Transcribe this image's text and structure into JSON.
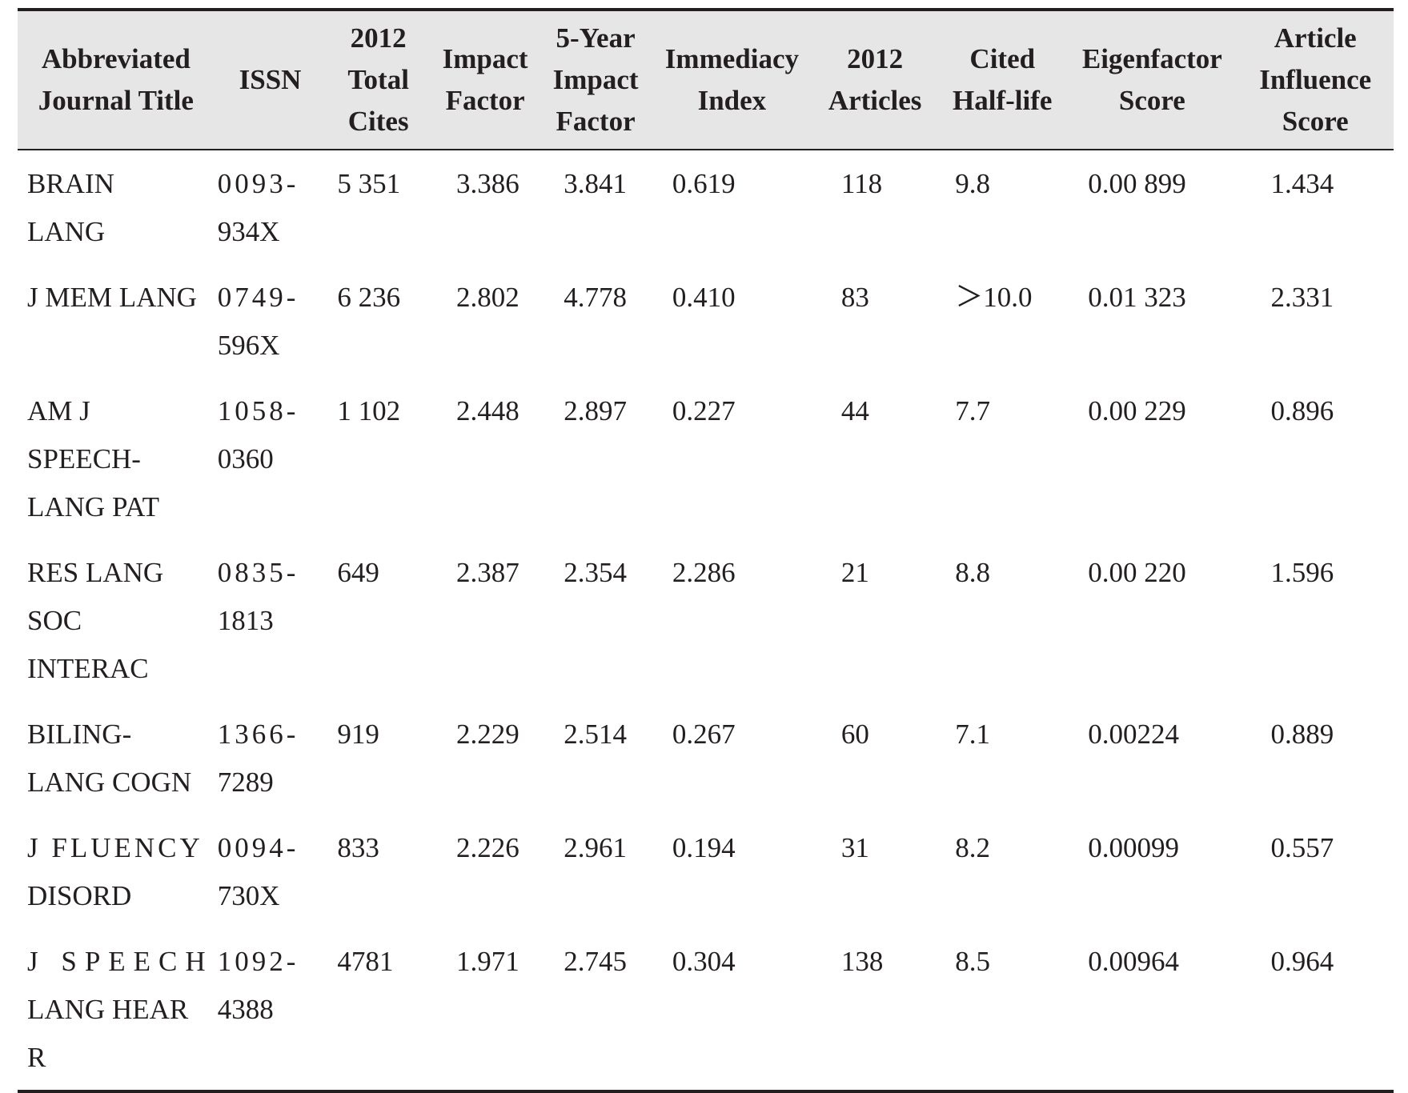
{
  "headers": [
    [
      "Abbreviated",
      "Journal Title"
    ],
    [
      "ISSN"
    ],
    [
      "2012",
      "Total",
      "Cites"
    ],
    [
      "Impact",
      "Factor"
    ],
    [
      "5-Year",
      "Impact",
      "Factor"
    ],
    [
      "Immediacy",
      "Index"
    ],
    [
      "2012",
      "Articles"
    ],
    [
      "Cited",
      "Half-life"
    ],
    [
      "Eigenfactor",
      "Score"
    ],
    [
      "Article",
      "Influence",
      "Score"
    ]
  ],
  "rows": [
    {
      "title": [
        "BRAIN",
        "LANG"
      ],
      "issn": [
        "0093-",
        "934X"
      ],
      "total_cites": "5 351",
      "impact_factor": "3.386",
      "five_year_if": "3.841",
      "immediacy": "0.619",
      "articles": "118",
      "half_life": "9.8",
      "eigenfactor": "0.00 899",
      "article_influence": "1.434"
    },
    {
      "title": [
        "J MEM LANG"
      ],
      "issn": [
        "0749-",
        "596X"
      ],
      "total_cites": "6 236",
      "impact_factor": "2.802",
      "five_year_if": "4.778",
      "immediacy": "0.410",
      "articles": "83",
      "half_life": "＞10.0",
      "eigenfactor": "0.01 323",
      "article_influence": "2.331"
    },
    {
      "title": [
        "AM J",
        "SPEECH-",
        "LANG PAT"
      ],
      "issn": [
        "1058-",
        "0360"
      ],
      "total_cites": "1 102",
      "impact_factor": "2.448",
      "five_year_if": "2.897",
      "immediacy": "0.227",
      "articles": "44",
      "half_life": "7.7",
      "eigenfactor": "0.00 229",
      "article_influence": "0.896"
    },
    {
      "title": [
        "RES LANG",
        "SOC",
        "INTERAC"
      ],
      "issn": [
        "0835-",
        "1813"
      ],
      "total_cites": "649",
      "impact_factor": "2.387",
      "five_year_if": "2.354",
      "immediacy": "2.286",
      "articles": "21",
      "half_life": "8.8",
      "eigenfactor": "0.00 220",
      "article_influence": "1.596"
    },
    {
      "title": [
        "BILING-",
        "LANG COGN"
      ],
      "issn": [
        "1366-",
        "7289"
      ],
      "total_cites": "919",
      "impact_factor": "2.229",
      "five_year_if": "2.514",
      "immediacy": "0.267",
      "articles": "60",
      "half_life": "7.1",
      "eigenfactor": "0.00224",
      "article_influence": "0.889"
    },
    {
      "title": [
        "J FLUENCY",
        "DISORD"
      ],
      "issn": [
        "0094-",
        "730X"
      ],
      "total_cites": "833",
      "impact_factor": "2.226",
      "five_year_if": "2.961",
      "immediacy": "0.194",
      "articles": "31",
      "half_life": "8.2",
      "eigenfactor": "0.00099",
      "article_influence": "0.557"
    },
    {
      "title": [
        "J SPEECH",
        "LANG HEAR",
        "R"
      ],
      "issn": [
        "1092-",
        "4388"
      ],
      "total_cites": "4781",
      "impact_factor": "1.971",
      "five_year_if": "2.745",
      "immediacy": "0.304",
      "articles": "138",
      "half_life": "8.5",
      "eigenfactor": "0.00964",
      "article_influence": "0.964"
    }
  ]
}
